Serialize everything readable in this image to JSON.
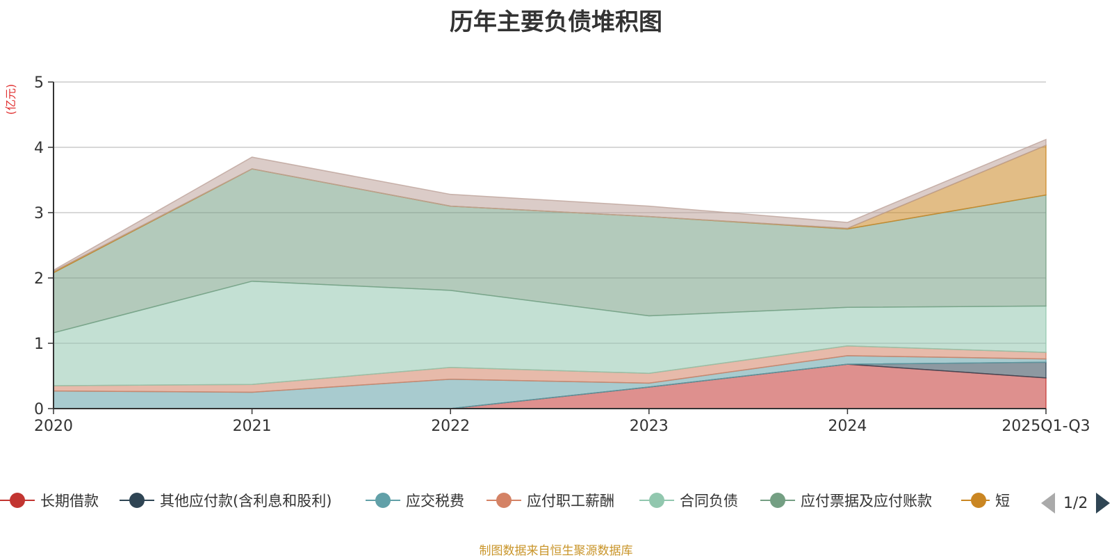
{
  "chart_data": {
    "type": "area",
    "title": "历年主要负债堆积图",
    "ylabel": "(亿元)",
    "xlabel": "",
    "categories": [
      "2020",
      "2021",
      "2022",
      "2023",
      "2024",
      "2025Q1-Q3"
    ],
    "ylim": [
      0,
      5
    ],
    "yticks": [
      0,
      1,
      2,
      3,
      4,
      5
    ],
    "stacked": true,
    "grid": true,
    "legend_position": "bottom",
    "series": [
      {
        "name": "长期借款",
        "color": "#c23531",
        "values": [
          0,
          0,
          0,
          0.33,
          0.68,
          0.47
        ]
      },
      {
        "name": "其他应付款(含利息和股利)",
        "color": "#2f4554",
        "values": [
          0,
          0,
          0,
          0,
          0,
          0.24
        ]
      },
      {
        "name": "应交税费",
        "color": "#61a0a8",
        "values": [
          0.27,
          0.25,
          0.45,
          0.06,
          0.13,
          0.05
        ]
      },
      {
        "name": "应付职工薪酬",
        "color": "#d48265",
        "values": [
          0.08,
          0.12,
          0.18,
          0.15,
          0.15,
          0.1
        ]
      },
      {
        "name": "合同负债",
        "color": "#91c7ae",
        "values": [
          0.81,
          1.58,
          1.18,
          0.88,
          0.59,
          0.71
        ]
      },
      {
        "name": "应付票据及应付账款",
        "color": "#749f83",
        "values": [
          0.92,
          1.72,
          1.29,
          1.52,
          1.2,
          1.7
        ]
      },
      {
        "name": "短期借款",
        "color": "#ca8622",
        "values": [
          0.02,
          0,
          0,
          0,
          0.01,
          0.76
        ]
      },
      {
        "name": "",
        "color": "#bda29a",
        "values": [
          0.02,
          0.18,
          0.18,
          0.16,
          0.09,
          0.09
        ]
      }
    ]
  },
  "legend": {
    "visible_items": [
      "长期借款",
      "其他应付款(含利息和股利)",
      "应交税费",
      "应付职工薪酬",
      "合同负债",
      "应付票据及应付账款",
      "短"
    ],
    "colors": [
      "#c23531",
      "#2f4554",
      "#61a0a8",
      "#d48265",
      "#91c7ae",
      "#749f83",
      "#ca8622"
    ],
    "page_text": "1/2"
  },
  "source_note": "制图数据来自恒生聚源数据库"
}
